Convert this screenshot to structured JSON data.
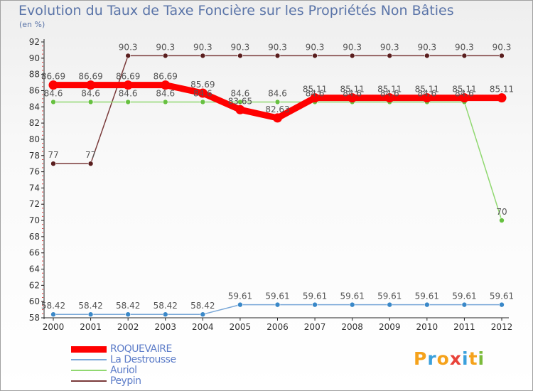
{
  "header": {
    "title": "Evolution du Taux de Taxe Foncière sur les Propriétés Non Bâties",
    "unit": "(en %)"
  },
  "logo": {
    "text": "Proxiti",
    "colors": [
      "#f5a21b",
      "#3aa0dc",
      "#f5a21b",
      "#e8433a",
      "#3aa0dc",
      "#f5a21b",
      "#7bbb3a"
    ]
  },
  "chart_data": {
    "type": "line",
    "title": "Evolution du Taux de Taxe Foncière sur les Propriétés Non Bâties",
    "ylabel": "(en %)",
    "xlabel": "",
    "categories": [
      "2000",
      "2001",
      "2002",
      "2003",
      "2004",
      "2005",
      "2006",
      "2007",
      "2008",
      "2009",
      "2010",
      "2011",
      "2012"
    ],
    "ylim": [
      58,
      92
    ],
    "yticks": [
      58,
      60,
      62,
      64,
      66,
      68,
      70,
      72,
      74,
      76,
      78,
      80,
      82,
      84,
      86,
      88,
      90,
      92
    ],
    "grid": false,
    "legend_position": "bottom-left",
    "series": [
      {
        "name": "ROQUEVAIRE",
        "color": "#ff0000",
        "width": 9,
        "point_color": "#ff0000",
        "values": [
          86.69,
          86.69,
          86.69,
          86.69,
          85.69,
          83.65,
          82.63,
          85.11,
          85.11,
          85.11,
          85.11,
          85.11,
          85.11
        ],
        "labels": [
          "86.69",
          "86.69",
          "86.69",
          "86.69",
          "85.69",
          "83.65",
          "82.63",
          "85.11",
          "85.11",
          "85.11",
          "85.11",
          "85.11",
          "85.11"
        ]
      },
      {
        "name": "La Destrousse",
        "color": "#7aa8d8",
        "width": 1.5,
        "point_color": "#3a88c8",
        "values": [
          58.42,
          58.42,
          58.42,
          58.42,
          58.42,
          59.61,
          59.61,
          59.61,
          59.61,
          59.61,
          59.61,
          59.61,
          59.61
        ],
        "labels": [
          "58.42",
          "58.42",
          "58.42",
          "58.42",
          "58.42",
          "59.61",
          "59.61",
          "59.61",
          "59.61",
          "59.61",
          "59.61",
          "59.61",
          "59.61"
        ]
      },
      {
        "name": "Auriol",
        "color": "#90d870",
        "width": 1.5,
        "point_color": "#66c040",
        "values": [
          84.6,
          84.6,
          84.6,
          84.6,
          84.6,
          84.6,
          84.6,
          84.6,
          84.6,
          84.6,
          84.6,
          84.6,
          70
        ],
        "labels": [
          "84.6",
          "84.6",
          "84.6",
          "84.6",
          "84.6",
          "84.6",
          "84.6",
          "84.6",
          "84.6",
          "84.6",
          "84.6",
          "84.6",
          "70"
        ]
      },
      {
        "name": "Peypin",
        "color": "#7a3a3a",
        "width": 1.5,
        "point_color": "#5a1e1e",
        "values": [
          77,
          77,
          90.3,
          90.3,
          90.3,
          90.3,
          90.3,
          90.3,
          90.3,
          90.3,
          90.3,
          90.3,
          90.3
        ],
        "labels": [
          "77",
          "77",
          "90.3",
          "90.3",
          "90.3",
          "90.3",
          "90.3",
          "90.3",
          "90.3",
          "90.3",
          "90.3",
          "90.3",
          "90.3"
        ]
      }
    ]
  }
}
